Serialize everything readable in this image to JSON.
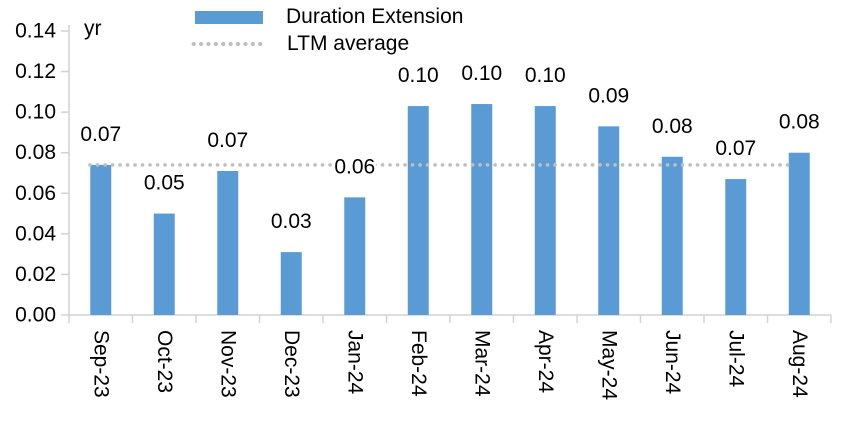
{
  "chart_data": {
    "type": "bar",
    "title": "",
    "unit_label": "yr",
    "categories": [
      "Sep-23",
      "Oct-23",
      "Nov-23",
      "Dec-23",
      "Jan-24",
      "Feb-24",
      "Mar-24",
      "Apr-24",
      "May-24",
      "Jun-24",
      "Jul-24",
      "Aug-24"
    ],
    "series": [
      {
        "name": "Duration Extension",
        "color": "#5B9BD5",
        "values": [
          0.074,
          0.05,
          0.071,
          0.031,
          0.058,
          0.103,
          0.104,
          0.103,
          0.093,
          0.078,
          0.067,
          0.08
        ],
        "data_labels": [
          "0.07",
          "0.05",
          "0.07",
          "0.03",
          "0.06",
          "0.10",
          "0.10",
          "0.10",
          "0.09",
          "0.08",
          "0.07",
          "0.08"
        ]
      }
    ],
    "reference_line": {
      "name": "LTM average",
      "value": 0.074,
      "color": "#BFBFBF",
      "style": "dotted"
    },
    "ylim": [
      0,
      0.14
    ],
    "ytick_step": 0.02,
    "ytick_labels": [
      "0.00",
      "0.02",
      "0.04",
      "0.06",
      "0.08",
      "0.10",
      "0.12",
      "0.14"
    ],
    "legend": {
      "position": "top",
      "items": [
        {
          "label": "Duration Extension",
          "swatch": "bar"
        },
        {
          "label": "LTM average",
          "swatch": "dotted-line"
        }
      ]
    },
    "grid": false,
    "axis_color": "#D2D2D2",
    "text_color": "#000000"
  }
}
